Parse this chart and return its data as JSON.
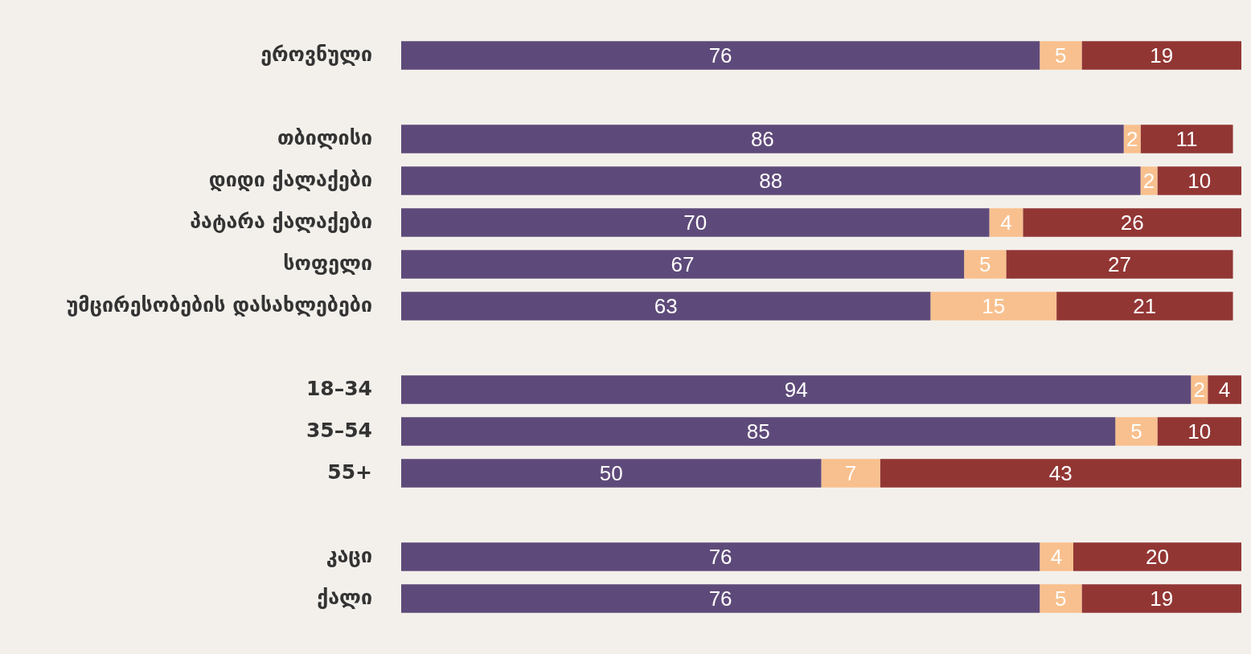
{
  "chart_data": {
    "type": "bar",
    "orientation": "horizontal",
    "stacked": true,
    "data_labels": true,
    "legend": false,
    "grid": false,
    "tick_labels": "y",
    "xlim": [
      0,
      100
    ],
    "categories": [
      "ეროვნული",
      null,
      "თბილისი",
      "დიდი ქალაქები",
      "პატარა ქალაქები",
      "სოფელი",
      "უმცირესობების დასახლებები",
      null,
      "18–34",
      "35–54",
      "55+",
      null,
      "კაცი",
      "ქალი"
    ],
    "series": [
      {
        "color": "#5e4a7a",
        "values": [
          76,
          null,
          86,
          88,
          70,
          67,
          63,
          null,
          94,
          85,
          50,
          null,
          76,
          76
        ]
      },
      {
        "color": "#f8c08e",
        "values": [
          5,
          null,
          2,
          2,
          4,
          5,
          15,
          null,
          2,
          5,
          7,
          null,
          4,
          5
        ]
      },
      {
        "color": "#923634",
        "values": [
          19,
          null,
          11,
          10,
          26,
          27,
          21,
          null,
          4,
          10,
          43,
          null,
          20,
          19
        ]
      }
    ]
  }
}
